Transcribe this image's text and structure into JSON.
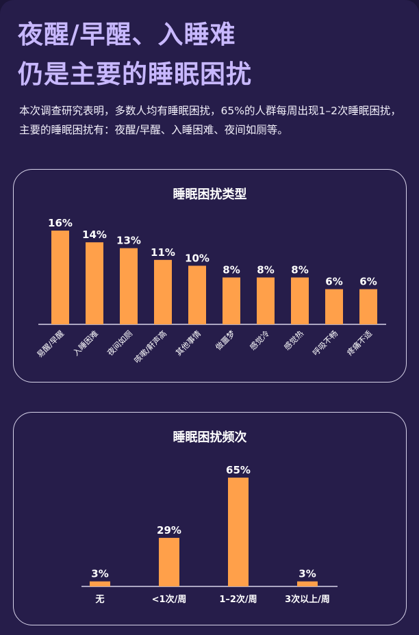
{
  "header": {
    "title_line1": "夜醒/早醒、入睡难",
    "title_line2": "仍是主要的睡眠困扰",
    "intro": "本次调查研究表明，多数人均有睡眠困扰，65%的人群每周出现1–2次睡眠困扰，主要的睡眠困扰有：夜醒/早醒、入睡困难、夜间如厕等。"
  },
  "colors": {
    "bar": "#ffa04a",
    "title": "#c8b8ff",
    "background": "#261d4a"
  },
  "chart_data": [
    {
      "type": "bar",
      "title": "睡眠困扰类型",
      "unit": "%",
      "categories": [
        "易醒/早醒",
        "入睡困难",
        "夜间如厕",
        "咳嗽/鼾声高",
        "其他事情",
        "做噩梦",
        "感觉冷",
        "感觉热",
        "呼吸不畅",
        "疼痛不适"
      ],
      "values": [
        16,
        14,
        13,
        11,
        10,
        8,
        8,
        8,
        6,
        6
      ],
      "ylim": [
        0,
        16
      ]
    },
    {
      "type": "bar",
      "title": "睡眠困扰频次",
      "unit": "%",
      "categories": [
        "无",
        "<1次/周",
        "1–2次/周",
        "3次以上/周"
      ],
      "values": [
        3,
        29,
        65,
        3
      ],
      "ylim": [
        0,
        65
      ]
    }
  ]
}
